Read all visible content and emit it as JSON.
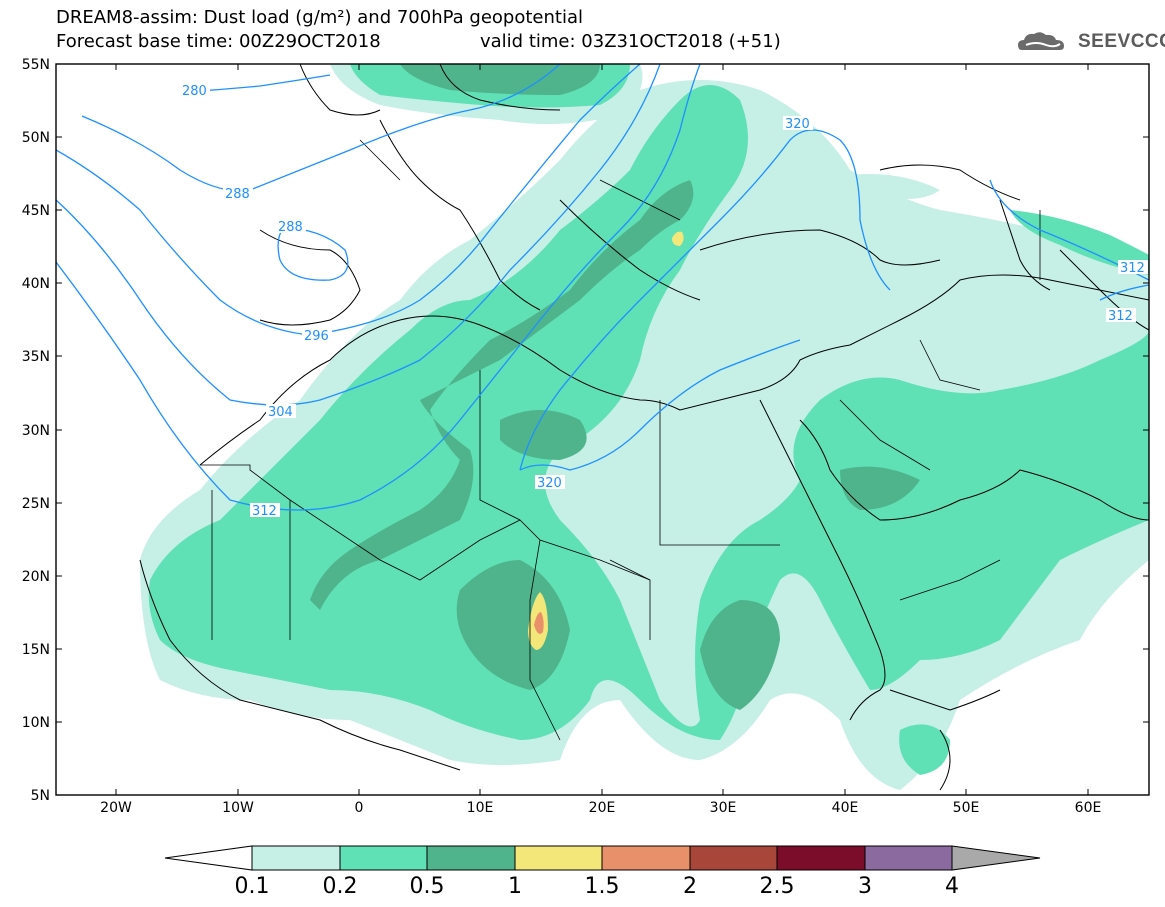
{
  "header": {
    "title_line1": "DREAM8-assim: Dust load (g/m²) and 700hPa geopotential",
    "title_line2": "Forecast base time: 00Z29OCT2018",
    "valid_time": "valid time: 03Z31OCT2018 (+51)",
    "logo_text": "SEEVCCC"
  },
  "axes": {
    "lat_labels": [
      "55N",
      "50N",
      "45N",
      "40N",
      "35N",
      "30N",
      "25N",
      "20N",
      "15N",
      "10N",
      "5N"
    ],
    "lon_labels": [
      "20W",
      "10W",
      "0",
      "10E",
      "20E",
      "30E",
      "40E",
      "50E",
      "60E"
    ]
  },
  "geopotential_labels": [
    "280",
    "288",
    "288",
    "296",
    "304",
    "312",
    "320",
    "320",
    "312",
    "312"
  ],
  "colorbar": {
    "ticks": [
      "0.1",
      "0.2",
      "0.5",
      "1",
      "1.5",
      "2",
      "2.5",
      "3",
      "4"
    ],
    "colors": [
      "#c6efe6",
      "#5fe0b5",
      "#4fb48c",
      "#f3e77a",
      "#e8906a",
      "#a8463a",
      "#7b0d2a",
      "#8b6aa0"
    ]
  },
  "palette": {
    "geopotential_line": "#1e90ff",
    "coast": "#000000",
    "level1": "#c6efe6",
    "level2": "#5fe0b5",
    "level3": "#4fb48c",
    "level4": "#f3e77a",
    "level5": "#e8906a"
  }
}
